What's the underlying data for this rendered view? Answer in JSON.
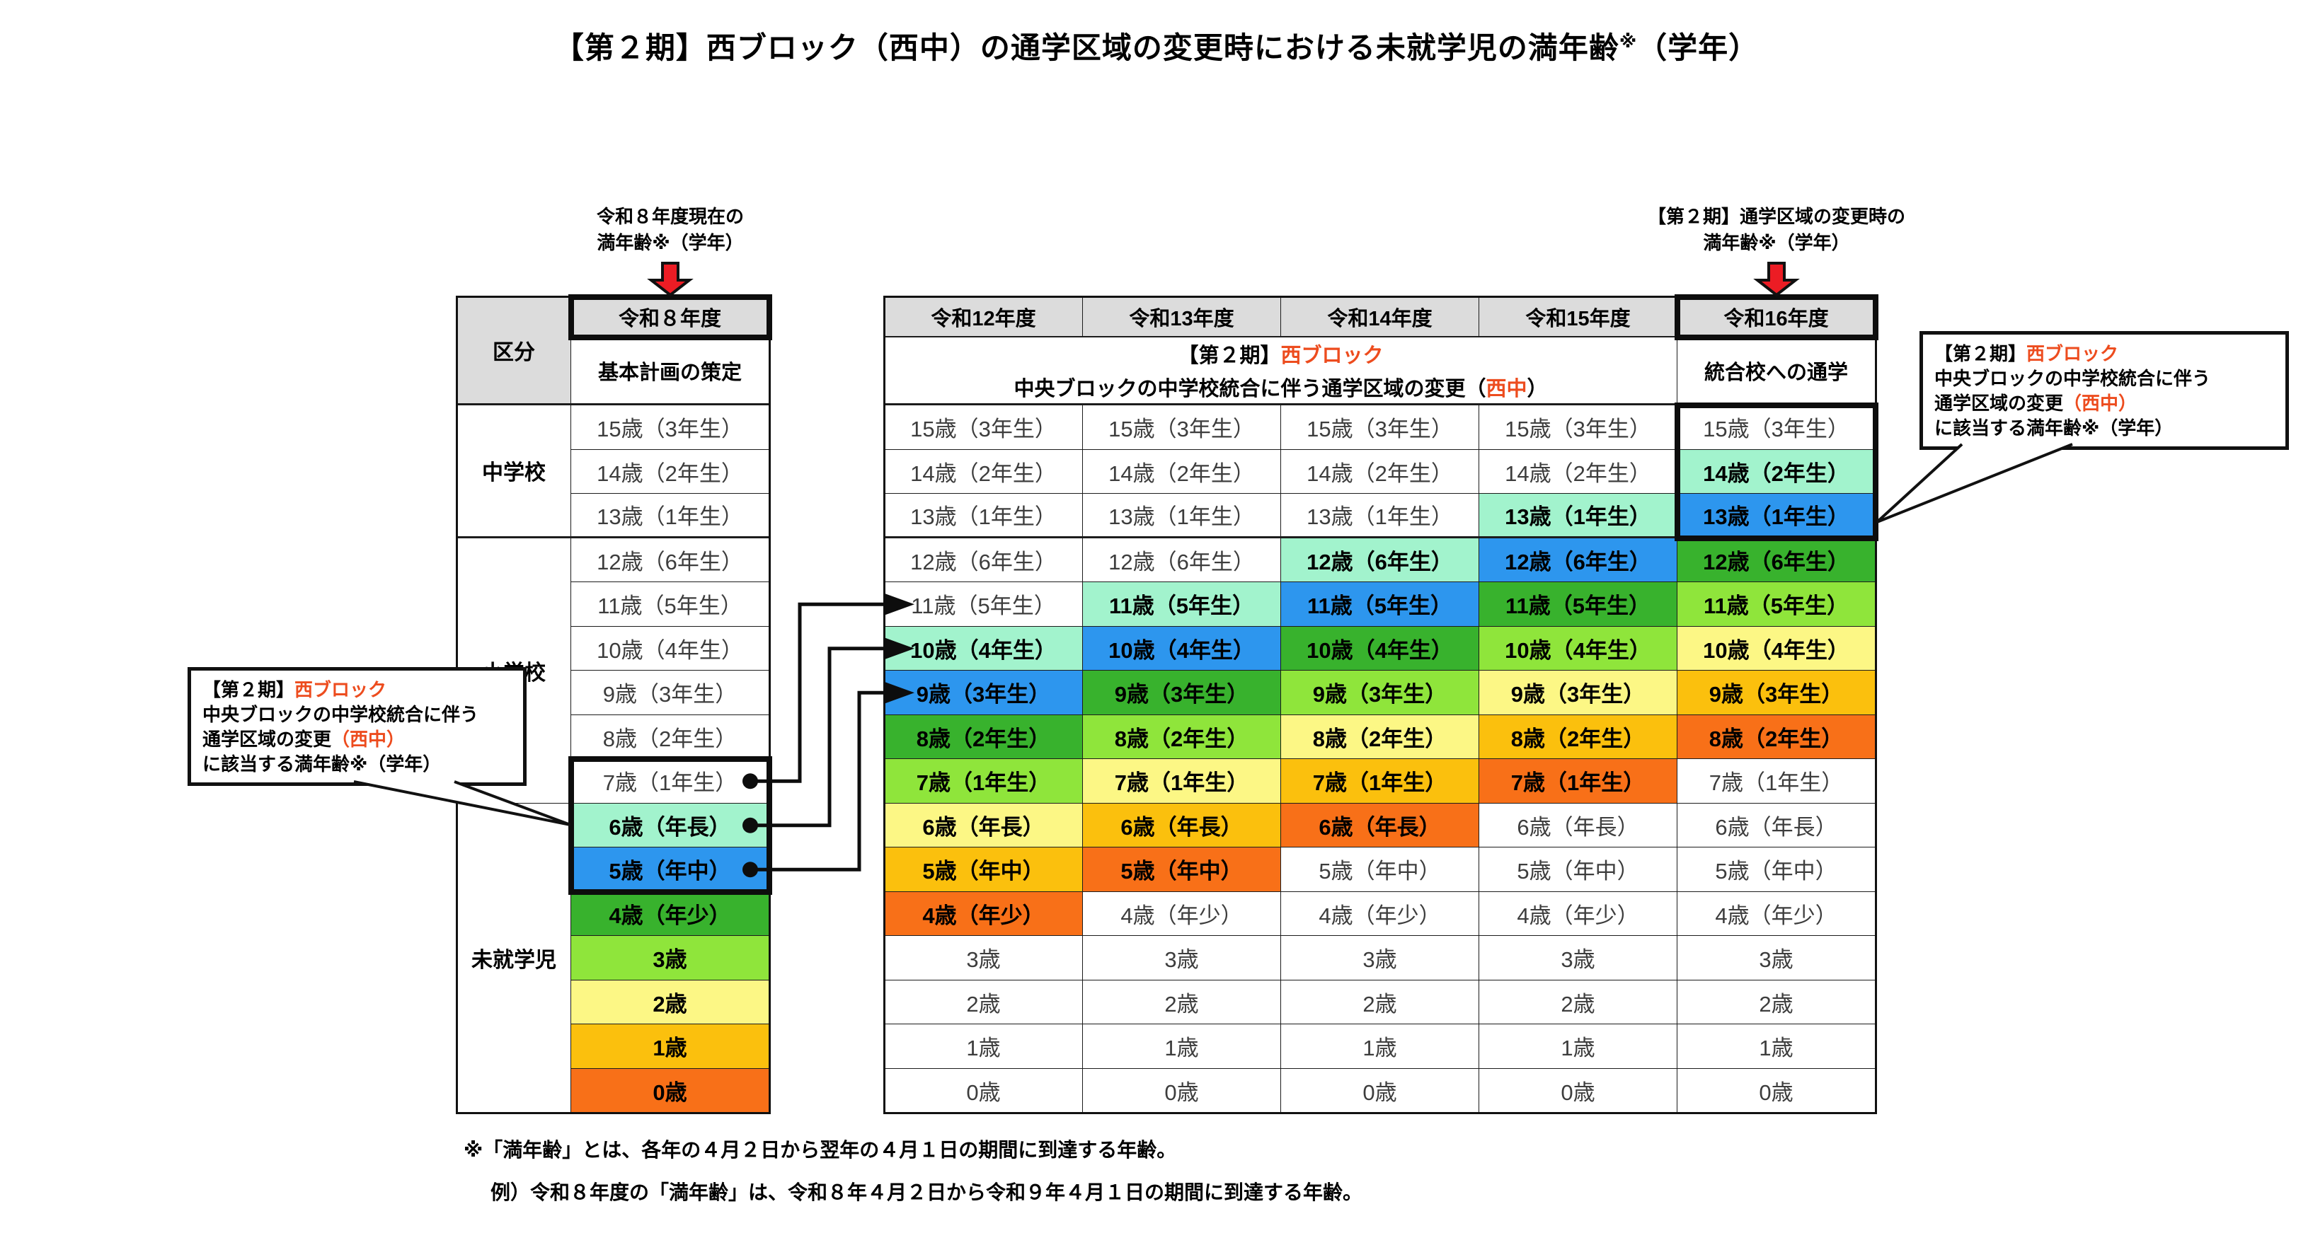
{
  "title": {
    "main": "【第２期】西ブロック（西中）の通学区域の変更時における未就学児の満年齢",
    "sup": "※",
    "tail": "（学年）"
  },
  "annotations": {
    "current": {
      "line1": "令和８年度現在の",
      "line2": "満年齢※（学年）"
    },
    "change": {
      "line1": "【第２期】通学区域の変更時の",
      "line2": "満年齢※（学年）"
    }
  },
  "callout": {
    "line1_black": "【第２期】",
    "line1_red": "西ブロック",
    "line2": "中央ブロックの中学校統合に伴う",
    "line3_black": "通学区域の変更",
    "line3_red": "（西中）",
    "line4": "に該当する満年齢※（学年）"
  },
  "left_table": {
    "corner": "区分",
    "year_header": "令和８年度",
    "sub_header": "基本計画の策定",
    "groups": [
      {
        "label": "中学校",
        "span": 3
      },
      {
        "label": "小学校",
        "span": 6
      },
      {
        "label": "未就学児",
        "span": 7
      }
    ]
  },
  "middle_table": {
    "year_headers": [
      "令和12年度",
      "令和13年度",
      "令和14年度",
      "令和15年度",
      "令和16年度"
    ],
    "span_header": {
      "line1_black": "【第２期】",
      "line1_red": "西ブロック",
      "line2_before": "中央ブロックの中学校統合に伴う通学区域の変更（",
      "line2_red": "西中",
      "line2_after": "）"
    },
    "last_sub_header": "統合校への通学"
  },
  "rows": [
    {
      "label": "15歳（3年生）",
      "r8": "white",
      "mid": [
        "white",
        "white",
        "white",
        "white",
        "white"
      ]
    },
    {
      "label": "14歳（2年生）",
      "r8": "white",
      "mid": [
        "white",
        "white",
        "white",
        "white",
        "mint"
      ]
    },
    {
      "label": "13歳（1年生）",
      "r8": "white",
      "mid": [
        "white",
        "white",
        "white",
        "mint",
        "blue"
      ]
    },
    {
      "label": "12歳（6年生）",
      "r8": "white",
      "mid": [
        "white",
        "white",
        "mint",
        "blue",
        "green"
      ]
    },
    {
      "label": "11歳（5年生）",
      "r8": "white",
      "mid": [
        "white",
        "mint",
        "blue",
        "green",
        "lgreen"
      ],
      "arrow": true
    },
    {
      "label": "10歳（4年生）",
      "r8": "white",
      "mid": [
        "mint",
        "blue",
        "green",
        "lgreen",
        "yellow"
      ],
      "arrow": true
    },
    {
      "label": "9歳（3年生）",
      "r8": "white",
      "mid": [
        "blue",
        "green",
        "lgreen",
        "yellow",
        "gold"
      ],
      "arrow": true
    },
    {
      "label": "8歳（2年生）",
      "r8": "white",
      "mid": [
        "green",
        "lgreen",
        "yellow",
        "gold",
        "orange"
      ]
    },
    {
      "label": "7歳（1年生）",
      "r8": "white",
      "mid": [
        "lgreen",
        "yellow",
        "gold",
        "orange",
        "white"
      ],
      "dot": true
    },
    {
      "label": "6歳（年長）",
      "r8": "mint",
      "mid": [
        "yellow",
        "gold",
        "orange",
        "white",
        "white"
      ],
      "dot": true
    },
    {
      "label": "5歳（年中）",
      "r8": "blue",
      "mid": [
        "gold",
        "orange",
        "white",
        "white",
        "white"
      ],
      "dot": true
    },
    {
      "label": "4歳（年少）",
      "r8": "green",
      "mid": [
        "orange",
        "white",
        "white",
        "white",
        "white"
      ]
    },
    {
      "label": "3歳",
      "r8": "lgreen",
      "mid": [
        "white",
        "white",
        "white",
        "white",
        "white"
      ]
    },
    {
      "label": "2歳",
      "r8": "yellow",
      "mid": [
        "white",
        "white",
        "white",
        "white",
        "white"
      ]
    },
    {
      "label": "1歳",
      "r8": "gold",
      "mid": [
        "white",
        "white",
        "white",
        "white",
        "white"
      ]
    },
    {
      "label": "0歳",
      "r8": "orange",
      "mid": [
        "white",
        "white",
        "white",
        "white",
        "white"
      ]
    }
  ],
  "palette": {
    "white": "#ffffff",
    "mint": "#a2f3cd",
    "blue": "#2d96ee",
    "green": "#38b22d",
    "lgreen": "#8fe53b",
    "yellow": "#fcf785",
    "gold": "#fbc00d",
    "orange": "#f87018",
    "header_bg": "#dcdcdc",
    "red_text": "#ed4c1e",
    "arrow_red": "#ec1c24"
  },
  "footnotes": [
    "※「満年齢」とは、各年の４月２日から翌年の４月１日の期間に到達する年齢。",
    "例）令和８年度の「満年齢」は、令和８年４月２日から令和９年４月１日の期間に到達する年齢。"
  ]
}
